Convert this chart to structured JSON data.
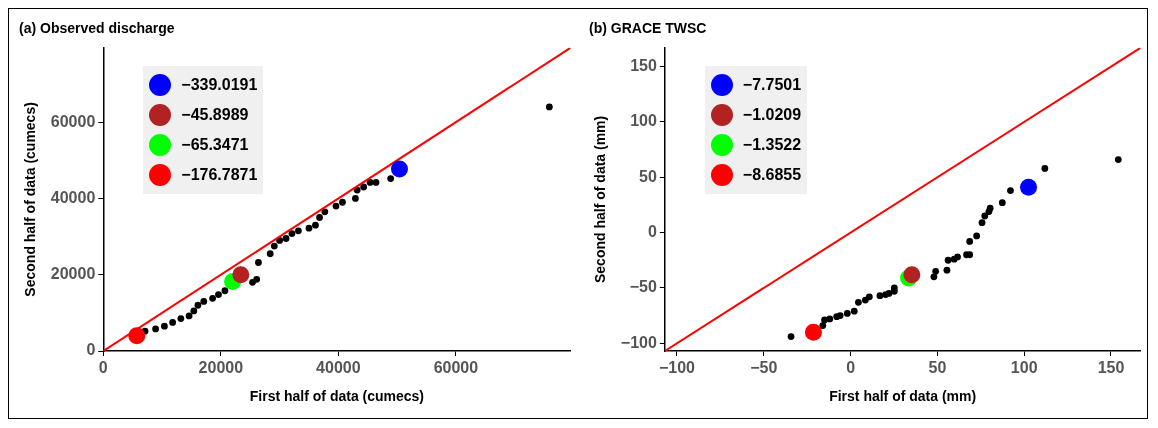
{
  "chart_data": [
    {
      "type": "scatter",
      "title": "(a) Observed discharge",
      "xlabel": "First half of data (cumecs)",
      "ylabel": "Second half of data (cumecs)",
      "xlim": [
        0,
        79500
      ],
      "ylim": [
        0,
        79500
      ],
      "xticks": [
        0,
        20000,
        40000,
        60000
      ],
      "yticks": [
        0,
        20000,
        40000,
        60000
      ],
      "grid": false,
      "legend": "top left",
      "marker": "circle",
      "series": [
        {
          "color": "#000000",
          "x": [
            7100,
            8900,
            10400,
            11800,
            13200,
            14600,
            15400,
            16100,
            17100,
            18600,
            19600,
            20700,
            25400,
            26100,
            26400,
            28400,
            29100,
            30000,
            31100,
            32100,
            33200,
            35000,
            36100,
            36800,
            37700,
            39600,
            40700,
            42900,
            43200,
            44300,
            45400,
            46400,
            48900,
            75900
          ],
          "values": [
            5200,
            5800,
            6500,
            7500,
            8500,
            9200,
            10500,
            12000,
            13000,
            13800,
            14800,
            15800,
            18000,
            18800,
            23200,
            25500,
            27500,
            29000,
            29500,
            30800,
            31500,
            32200,
            33000,
            35000,
            36500,
            38000,
            39000,
            40000,
            42200,
            43000,
            44200,
            44200,
            45200,
            64000
          ]
        },
        {
          "type": "line",
          "marker": "none",
          "color": "#ff0000",
          "x": [
            0,
            79500
          ],
          "values": [
            0,
            79500
          ]
        },
        {
          "name": "−339.0191",
          "color": "#0000ff",
          "x": [
            50400
          ],
          "values": [
            47700
          ]
        },
        {
          "name": "−45.8989",
          "color": "#b22222",
          "x": [
            23400
          ],
          "values": [
            20000
          ]
        },
        {
          "name": "−65.3471",
          "color": "#00ff00",
          "x": [
            22000
          ],
          "values": [
            18200
          ]
        },
        {
          "name": "−176.7871",
          "color": "#ff0000",
          "x": [
            5700
          ],
          "values": [
            4000
          ]
        }
      ]
    },
    {
      "type": "scatter",
      "title": "(b) GRACE TWSC",
      "xlabel": "First half of data (mm)",
      "ylabel": "Second half of data (mm)",
      "xlim": [
        -107,
        167
      ],
      "ylim": [
        -107,
        167
      ],
      "xticks": [
        -100,
        -50,
        0,
        50,
        100,
        150
      ],
      "yticks": [
        -100,
        -50,
        0,
        50,
        100,
        150
      ],
      "grid": false,
      "legend": "top left",
      "marker": "circle",
      "series": [
        {
          "color": "#000000",
          "x": [
            -34.3,
            -16,
            -15,
            -12,
            -8,
            -6,
            -1.9,
            2.1,
            4.5,
            8.5,
            10.8,
            16.9,
            20.2,
            22.1,
            25.2,
            25.2,
            48,
            49,
            55.5,
            56.2,
            59.7,
            61.6,
            66.8,
            68.6,
            68.6,
            72.6,
            75.7,
            77.3,
            79.7,
            80.4,
            87.4,
            92.1,
            111.9,
            154.2
          ],
          "values": [
            -94,
            -84,
            -79,
            -78,
            -76,
            -75,
            -73,
            -71,
            -63,
            -61,
            -58,
            -57,
            -56,
            -55,
            -53,
            -50,
            -40,
            -35,
            -34,
            -25,
            -24,
            -22,
            -20,
            -20,
            -8,
            -3,
            9,
            15,
            19,
            22,
            27,
            38,
            58,
            66
          ]
        },
        {
          "type": "line",
          "marker": "none",
          "color": "#ff0000",
          "x": [
            -107,
            167
          ],
          "values": [
            -107,
            167
          ]
        },
        {
          "name": "−7.7501",
          "color": "#0000ff",
          "x": [
            102.5
          ],
          "values": [
            41
          ]
        },
        {
          "name": "−1.0209",
          "color": "#b22222",
          "x": [
            35.3
          ],
          "values": [
            -38
          ]
        },
        {
          "name": "−1.3522",
          "color": "#00ff00",
          "x": [
            33.4
          ],
          "values": [
            -41
          ]
        },
        {
          "name": "−8.6855",
          "color": "#ff0000",
          "x": [
            -21.4
          ],
          "values": [
            -90
          ]
        }
      ]
    }
  ]
}
